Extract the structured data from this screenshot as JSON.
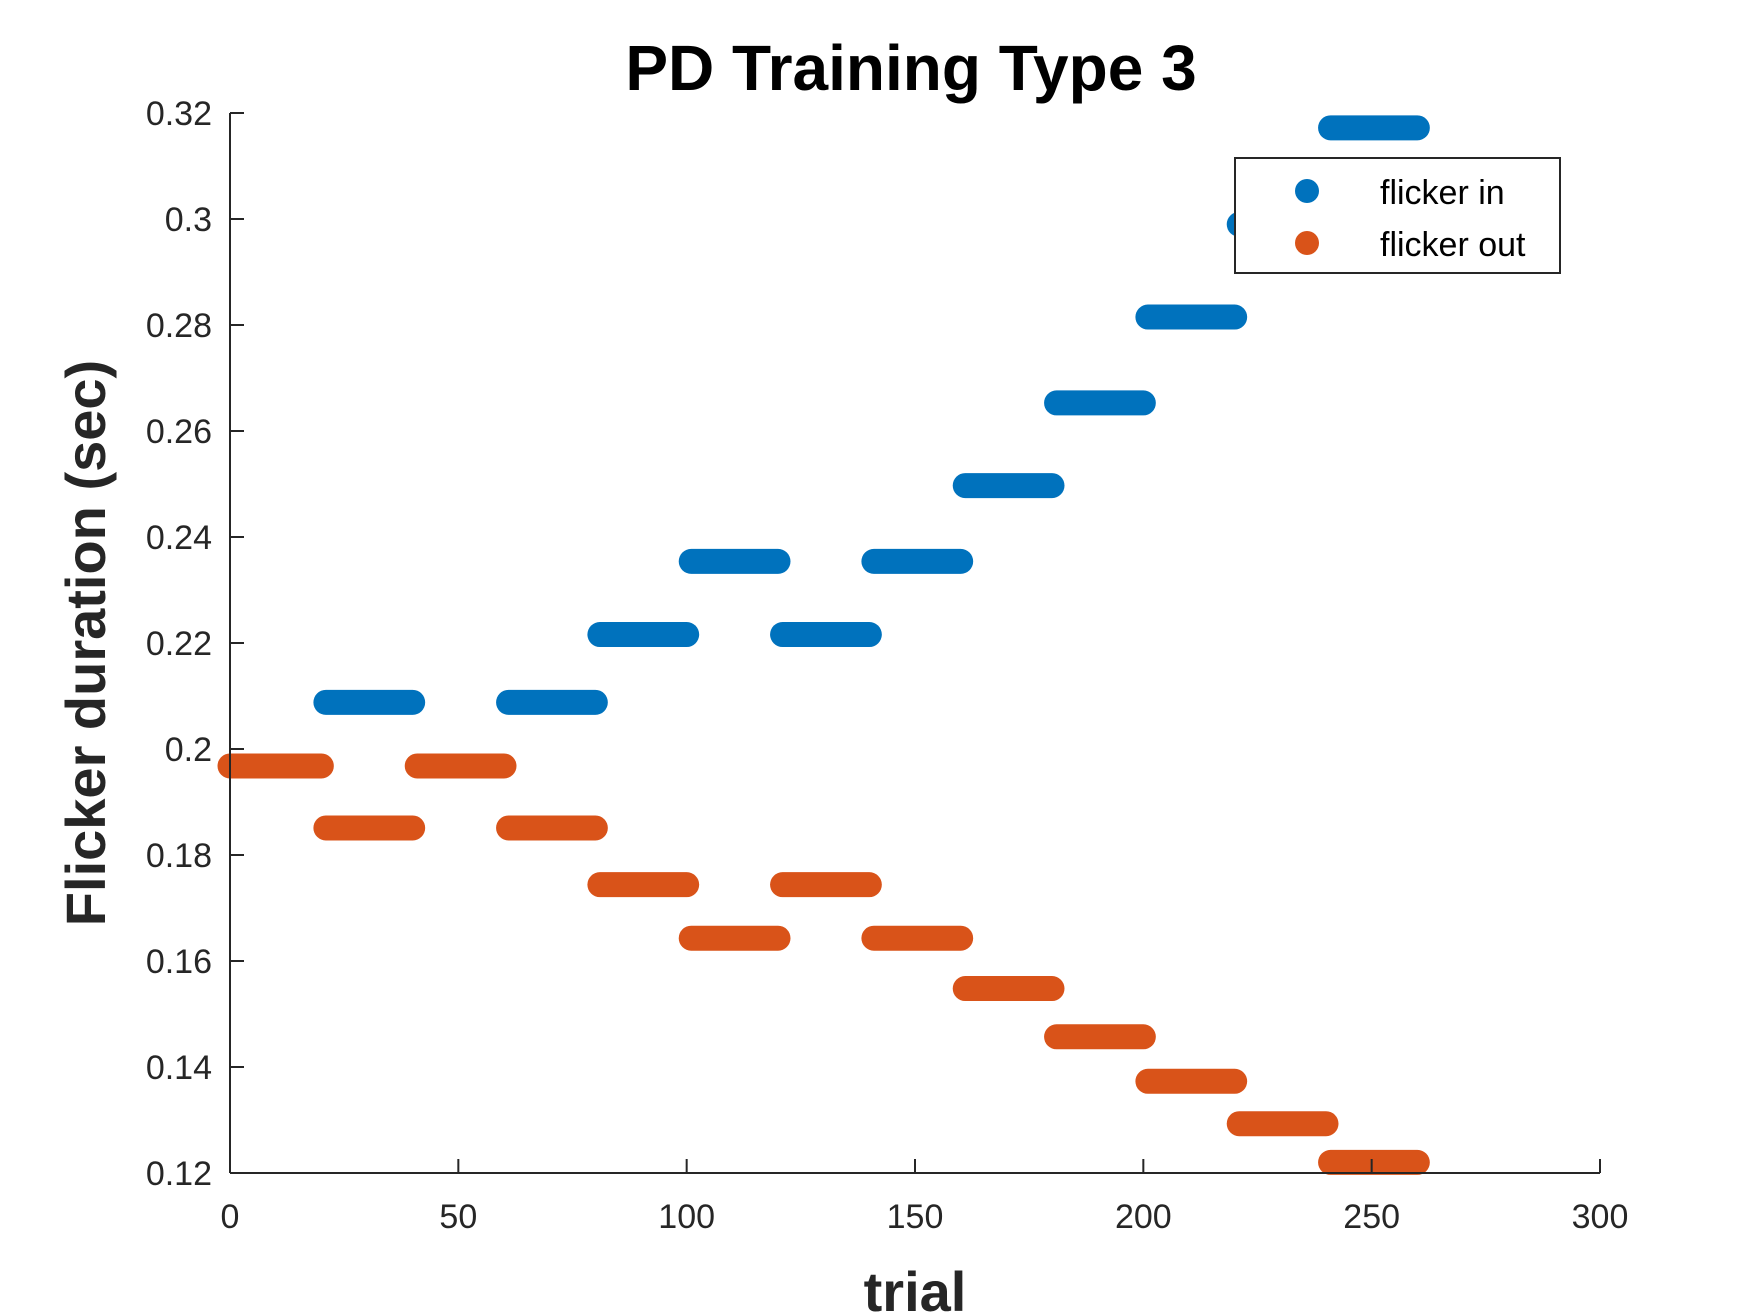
{
  "chart_data": {
    "type": "scatter",
    "title": "PD Training Type 3",
    "xlabel": "trial",
    "ylabel": "Flicker duration (sec)",
    "xlim": [
      0,
      300
    ],
    "ylim": [
      0.12,
      0.32
    ],
    "xticks": [
      0,
      50,
      100,
      150,
      200,
      250,
      300
    ],
    "xtick_labels": [
      "0",
      "50",
      "100",
      "150",
      "200",
      "250",
      "300"
    ],
    "yticks": [
      0.12,
      0.14,
      0.16,
      0.18,
      0.2,
      0.22,
      0.24,
      0.26,
      0.28,
      0.3,
      0.32
    ],
    "ytick_labels": [
      "0.12",
      "0.14",
      "0.16",
      "0.18",
      "0.2",
      "0.22",
      "0.24",
      "0.26",
      "0.28",
      "0.3",
      "0.32"
    ],
    "grid": false,
    "legend_position": "top-right",
    "series": [
      {
        "name": "flicker in",
        "color": "#0072BD",
        "segments": [
          {
            "x_start": 21,
            "x_end": 40,
            "y": 0.2088
          },
          {
            "x_start": 61,
            "x_end": 80,
            "y": 0.2088
          },
          {
            "x_start": 81,
            "x_end": 100,
            "y": 0.2216
          },
          {
            "x_start": 101,
            "x_end": 120,
            "y": 0.2354
          },
          {
            "x_start": 121,
            "x_end": 140,
            "y": 0.2216
          },
          {
            "x_start": 141,
            "x_end": 160,
            "y": 0.2354
          },
          {
            "x_start": 161,
            "x_end": 180,
            "y": 0.2497
          },
          {
            "x_start": 181,
            "x_end": 200,
            "y": 0.2653
          },
          {
            "x_start": 201,
            "x_end": 220,
            "y": 0.2815
          },
          {
            "x_start": 221,
            "x_end": 240,
            "y": 0.299
          },
          {
            "x_start": 241,
            "x_end": 260,
            "y": 0.3172
          }
        ]
      },
      {
        "name": "flicker out",
        "color": "#D95319",
        "segments": [
          {
            "x_start": 0,
            "x_end": 20,
            "y": 0.1968
          },
          {
            "x_start": 21,
            "x_end": 40,
            "y": 0.1851
          },
          {
            "x_start": 41,
            "x_end": 60,
            "y": 0.1968
          },
          {
            "x_start": 61,
            "x_end": 80,
            "y": 0.1851
          },
          {
            "x_start": 81,
            "x_end": 100,
            "y": 0.1744
          },
          {
            "x_start": 101,
            "x_end": 120,
            "y": 0.1643
          },
          {
            "x_start": 121,
            "x_end": 140,
            "y": 0.1744
          },
          {
            "x_start": 141,
            "x_end": 160,
            "y": 0.1643
          },
          {
            "x_start": 161,
            "x_end": 180,
            "y": 0.1548
          },
          {
            "x_start": 181,
            "x_end": 200,
            "y": 0.1457
          },
          {
            "x_start": 201,
            "x_end": 220,
            "y": 0.1373
          },
          {
            "x_start": 221,
            "x_end": 240,
            "y": 0.1293
          },
          {
            "x_start": 241,
            "x_end": 260,
            "y": 0.122
          }
        ]
      }
    ]
  }
}
